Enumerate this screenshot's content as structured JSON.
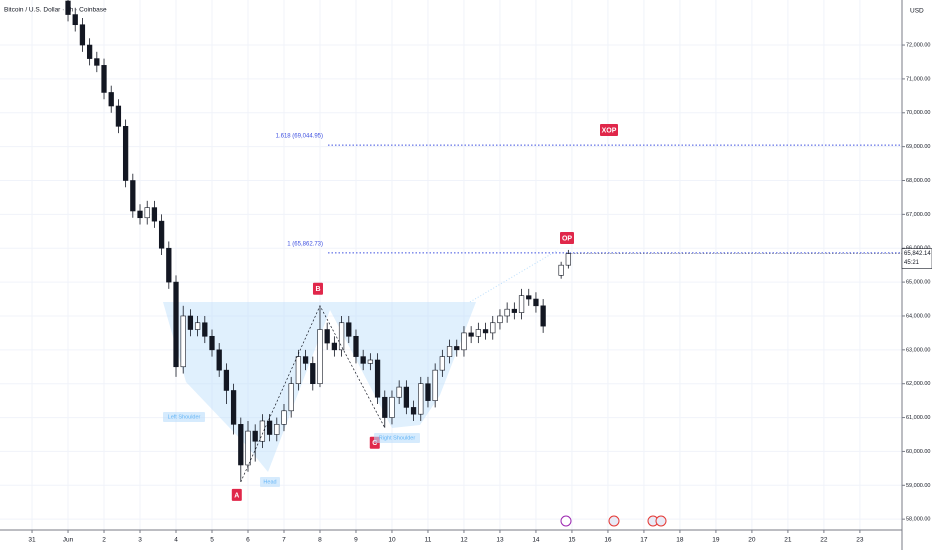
{
  "chart_data": {
    "type": "candlestick",
    "title": "Bitcoin / U.S. Dollar · 1h · Coinbase",
    "currency": "USD",
    "x": [
      1.0,
      1.2,
      1.4,
      1.6,
      1.8,
      2.0,
      2.2,
      2.4,
      2.6,
      2.8,
      3.0,
      3.2,
      3.4,
      3.6,
      3.8,
      4.0,
      4.2,
      4.4,
      4.6,
      4.8,
      5.0,
      5.2,
      5.4,
      5.6,
      5.8,
      6.0,
      6.2,
      6.4,
      6.6,
      6.8,
      7.0,
      7.2,
      7.4,
      7.6,
      7.8,
      8.0,
      8.2,
      8.4,
      8.6,
      8.8,
      9.0,
      9.2,
      9.4,
      9.6,
      9.8,
      10.0,
      10.2,
      10.4,
      10.6,
      10.8,
      11.0,
      11.2,
      11.4,
      11.6,
      11.8,
      12.0,
      12.2,
      12.4,
      12.6,
      12.8,
      13.0,
      13.2,
      13.4,
      13.6,
      13.8,
      14.0,
      14.2,
      14.7,
      14.9
    ],
    "open": [
      73300,
      72900,
      72600,
      72000,
      71600,
      71400,
      70600,
      70200,
      69600,
      68000,
      67100,
      66900,
      67200,
      66800,
      66000,
      65000,
      62500,
      64000,
      63600,
      63800,
      63400,
      63000,
      62400,
      61800,
      60800,
      59600,
      60600,
      60300,
      60900,
      60500,
      60800,
      61200,
      62000,
      62800,
      62600,
      62000,
      63600,
      63200,
      63000,
      63800,
      63400,
      62800,
      62600,
      62700,
      61600,
      61000,
      61600,
      61900,
      61300,
      61100,
      62000,
      61500,
      62400,
      62800,
      63100,
      63000,
      63500,
      63400,
      63600,
      63500,
      63800,
      64000,
      64200,
      64100,
      64600,
      64500,
      64300,
      65200,
      65500
    ],
    "high": [
      73500,
      73100,
      72800,
      72200,
      71800,
      71600,
      70800,
      70400,
      69800,
      68200,
      67300,
      67400,
      67400,
      67000,
      66200,
      65200,
      64300,
      64200,
      64000,
      64000,
      63600,
      63200,
      62600,
      62000,
      61000,
      60900,
      60800,
      61100,
      61100,
      61000,
      61400,
      62200,
      63000,
      63000,
      62800,
      64300,
      63800,
      63400,
      64000,
      64000,
      63600,
      63000,
      62900,
      62900,
      61800,
      61800,
      62100,
      62100,
      61500,
      62200,
      62200,
      62600,
      63000,
      63300,
      63300,
      63700,
      63700,
      63800,
      63800,
      64000,
      64200,
      64400,
      64400,
      64800,
      64800,
      64700,
      64500,
      65600,
      65950
    ],
    "low": [
      72700,
      72400,
      71800,
      71400,
      71200,
      70400,
      70000,
      69400,
      67800,
      66900,
      66700,
      66700,
      66600,
      65800,
      64800,
      62200,
      62300,
      63400,
      63400,
      63200,
      62800,
      62200,
      61400,
      60500,
      59100,
      59400,
      59700,
      60100,
      60300,
      60300,
      60600,
      61000,
      61800,
      62400,
      61800,
      61900,
      63000,
      62800,
      62800,
      63200,
      62600,
      62400,
      62400,
      61400,
      60700,
      60800,
      61400,
      61100,
      60900,
      60900,
      61300,
      61300,
      62200,
      62600,
      62800,
      62800,
      63200,
      63200,
      63300,
      63300,
      63600,
      63800,
      63900,
      63900,
      64300,
      64100,
      63500,
      65100,
      65400
    ],
    "close": [
      72900,
      72600,
      72000,
      71600,
      71400,
      70600,
      70200,
      69600,
      68000,
      67100,
      66900,
      67200,
      66800,
      66000,
      65000,
      62500,
      64000,
      63600,
      63800,
      63400,
      63000,
      62400,
      61800,
      60800,
      59600,
      60600,
      60300,
      60900,
      60500,
      60800,
      61200,
      62000,
      62800,
      62600,
      62000,
      63600,
      63200,
      63000,
      63800,
      63400,
      62800,
      62600,
      62700,
      61600,
      61000,
      61600,
      61900,
      61300,
      61100,
      62000,
      61500,
      62400,
      62800,
      63100,
      63000,
      63500,
      63400,
      63600,
      63500,
      63800,
      64000,
      64200,
      64100,
      64600,
      64500,
      64300,
      63700,
      65500,
      65842.14
    ],
    "up_color": "#ffffff",
    "down_color": "#131722",
    "xlim": [
      -0.89,
      24.17
    ],
    "ylim": [
      57680,
      73330
    ],
    "xticks": [
      {
        "value": 0,
        "label": "31"
      },
      {
        "value": 1,
        "label": "Jun"
      },
      2,
      3,
      4,
      5,
      6,
      7,
      8,
      9,
      10,
      11,
      12,
      13,
      14,
      15,
      16,
      17,
      18,
      19,
      20,
      21,
      22,
      23
    ],
    "yticks": [
      {
        "value": 58000,
        "label": "58,000.00"
      },
      {
        "value": 59000,
        "label": "59,000.00"
      },
      {
        "value": 60000,
        "label": "60,000.00"
      },
      {
        "value": 61000,
        "label": "61,000.00"
      },
      {
        "value": 62000,
        "label": "62,000.00"
      },
      {
        "value": 63000,
        "label": "63,000.00"
      },
      {
        "value": 64000,
        "label": "64,000.00"
      },
      {
        "value": 65000,
        "label": "65,000.00"
      },
      {
        "value": 66000,
        "label": "66,000.00"
      },
      {
        "value": 67000,
        "label": "67,000.00"
      },
      {
        "value": 68000,
        "label": "68,000.00"
      },
      {
        "value": 69000,
        "label": "69,000.00"
      },
      {
        "value": 70000,
        "label": "70,000.00"
      },
      {
        "value": 71000,
        "label": "71,000.00"
      },
      {
        "value": 72000,
        "label": "72,000.00"
      }
    ],
    "grid": true,
    "fib_levels": [
      {
        "value": 69044.95,
        "label": "1.618 (69,044.95)"
      },
      {
        "value": 65862.73,
        "label": "1 (65,862.73)"
      }
    ],
    "fib_color": "#3f51e0",
    "pattern_points": [
      "A",
      "B",
      "C"
    ],
    "targets": [
      "OP",
      "XOP"
    ],
    "shape_labels": [
      "Left Shoulder",
      "Head",
      "Right Shoulder"
    ],
    "last_price": {
      "value": 65842.14,
      "label": "65,842.14"
    },
    "countdown": "45:21"
  }
}
